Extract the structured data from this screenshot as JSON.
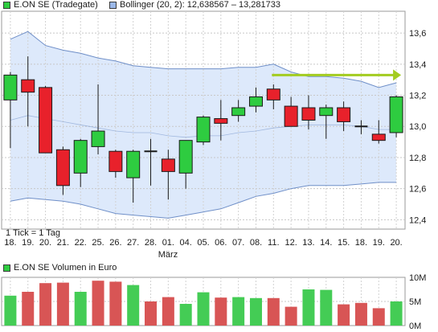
{
  "legends": {
    "price_series": "E.ON SE (Tradegate)",
    "price_color": "#2ecc40",
    "bollinger_label": "Bollinger (20, 2): 12,638567 – 13,281733",
    "bollinger_color": "#9bb8e8",
    "volume_series": "E.ON SE Volumen in Euro",
    "volume_color": "#2ecc40"
  },
  "footnote": "1 Tick = 1 Tag",
  "month_label": "März",
  "colors": {
    "up": "#2ecc40",
    "down": "#e8212b",
    "band_fill": "#dde9fb",
    "band_line": "#6f8fc8",
    "trend_arrow": "#a3cc20",
    "vol_up": "#44cc55",
    "vol_down": "#d85555"
  },
  "chart_data": [
    {
      "type": "candlestick",
      "title": "E.ON SE (Tradegate)",
      "categories": [
        "18.",
        "19.",
        "20.",
        "21.",
        "22.",
        "25.",
        "26.",
        "27.",
        "28.",
        "01.",
        "04.",
        "05.",
        "06.",
        "07.",
        "08.",
        "11.",
        "12.",
        "13.",
        "14.",
        "15.",
        "18.",
        "19.",
        "20."
      ],
      "open": [
        13.17,
        13.3,
        13.25,
        12.85,
        12.7,
        12.87,
        12.84,
        12.67,
        12.84,
        12.79,
        12.7,
        12.9,
        13.05,
        13.07,
        13.13,
        13.24,
        13.13,
        13.12,
        13.07,
        13.12,
        13.0,
        12.95,
        12.96
      ],
      "high": [
        13.35,
        13.45,
        13.26,
        12.87,
        12.92,
        13.27,
        12.85,
        12.85,
        12.92,
        12.85,
        12.91,
        13.07,
        13.17,
        13.17,
        13.25,
        13.27,
        13.19,
        13.2,
        13.14,
        13.16,
        13.04,
        13.04,
        13.2
      ],
      "low": [
        12.86,
        13.0,
        12.84,
        12.56,
        12.61,
        12.82,
        12.67,
        12.51,
        12.62,
        12.53,
        12.6,
        12.88,
        12.91,
        13.03,
        13.09,
        13.11,
        13.01,
        12.98,
        12.92,
        12.97,
        12.95,
        12.89,
        12.93
      ],
      "close": [
        13.33,
        13.22,
        12.83,
        12.62,
        12.91,
        12.97,
        12.71,
        12.84,
        12.84,
        12.71,
        12.91,
        13.06,
        13.02,
        13.12,
        13.19,
        13.17,
        13.0,
        13.04,
        13.12,
        13.03,
        13.0,
        12.91,
        13.19
      ],
      "bollinger": {
        "upper": [
          13.56,
          13.61,
          13.52,
          13.49,
          13.47,
          13.44,
          13.42,
          13.39,
          13.38,
          13.37,
          13.37,
          13.37,
          13.37,
          13.38,
          13.38,
          13.4,
          13.35,
          13.32,
          13.32,
          13.31,
          13.29,
          13.25,
          13.28
        ],
        "middle": [
          13.04,
          13.07,
          13.05,
          13.03,
          13.01,
          12.99,
          12.97,
          12.96,
          12.96,
          12.94,
          12.93,
          12.94,
          12.94,
          12.96,
          12.97,
          12.99,
          13.0,
          13.01,
          13.01,
          13.01,
          13.0,
          12.98,
          12.98
        ],
        "lower": [
          12.52,
          12.54,
          12.53,
          12.52,
          12.5,
          12.47,
          12.44,
          12.43,
          12.42,
          12.41,
          12.43,
          12.45,
          12.47,
          12.51,
          12.55,
          12.57,
          12.6,
          12.62,
          12.62,
          12.62,
          12.63,
          12.64,
          12.64
        ]
      },
      "trend_arrow": {
        "x_start": "11.",
        "x_end": "20.",
        "value": 13.33
      },
      "y_ticks": [
        "12,4",
        "12,6",
        "12,8",
        "13,0",
        "13,2",
        "13,4",
        "13,6"
      ],
      "ylim": [
        12.34,
        13.74
      ],
      "grid": true
    },
    {
      "type": "bar",
      "title": "E.ON SE Volumen in Euro",
      "categories": [
        "18.",
        "19.",
        "20.",
        "21.",
        "22.",
        "25.",
        "26.",
        "27.",
        "28.",
        "01.",
        "04.",
        "05.",
        "06.",
        "07.",
        "08.",
        "11.",
        "12.",
        "13.",
        "14.",
        "15.",
        "18.",
        "19.",
        "20."
      ],
      "values": [
        6.2,
        7.0,
        8.8,
        8.9,
        7.0,
        9.3,
        9.1,
        8.4,
        5.0,
        5.9,
        4.5,
        6.9,
        5.8,
        5.9,
        5.7,
        5.7,
        3.9,
        7.5,
        7.4,
        4.4,
        4.7,
        3.6,
        5.0
      ],
      "colors_up": [
        true,
        false,
        false,
        false,
        true,
        false,
        false,
        true,
        false,
        false,
        true,
        true,
        false,
        true,
        true,
        false,
        false,
        true,
        true,
        false,
        false,
        false,
        true
      ],
      "y_ticks": [
        "0M",
        "5M",
        "10M"
      ],
      "ylim": [
        0,
        10
      ],
      "grid": true
    }
  ]
}
